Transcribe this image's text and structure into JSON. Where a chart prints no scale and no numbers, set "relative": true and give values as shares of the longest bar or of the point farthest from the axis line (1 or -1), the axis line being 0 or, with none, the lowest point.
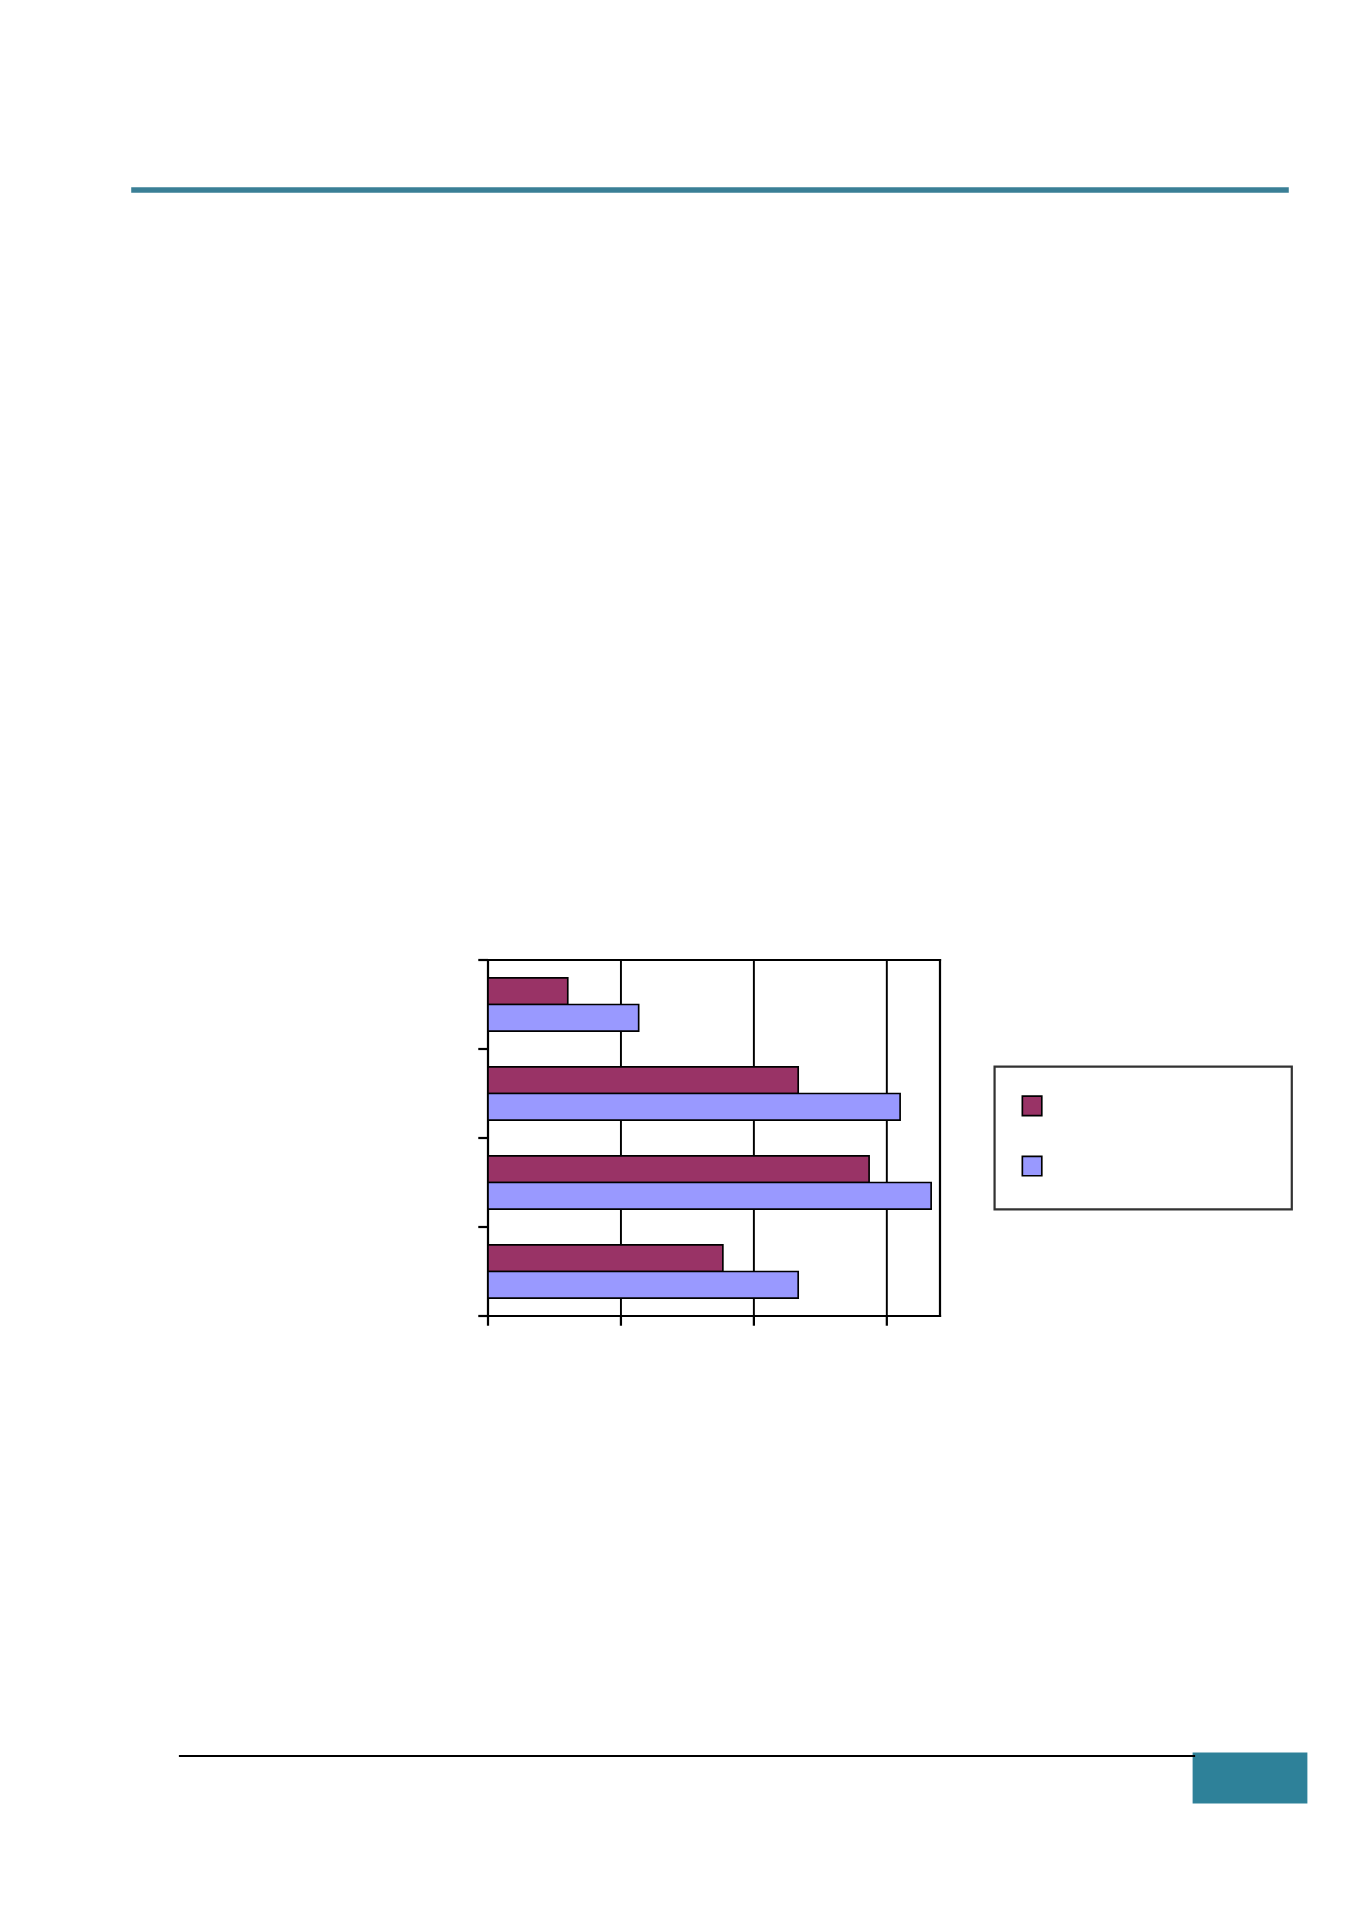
{
  "chart_data": {
    "type": "bar",
    "orientation": "horizontal",
    "relative": true,
    "categories": [
      null,
      null,
      null,
      null
    ],
    "series": [
      {
        "color": "#993366",
        "values": [
          0.18,
          0.7,
          0.86,
          0.53
        ]
      },
      {
        "color": "#9999ff",
        "values": [
          0.34,
          0.93,
          1,
          0.7
        ]
      }
    ],
    "grid": "x",
    "tick_labels": false
  }
}
